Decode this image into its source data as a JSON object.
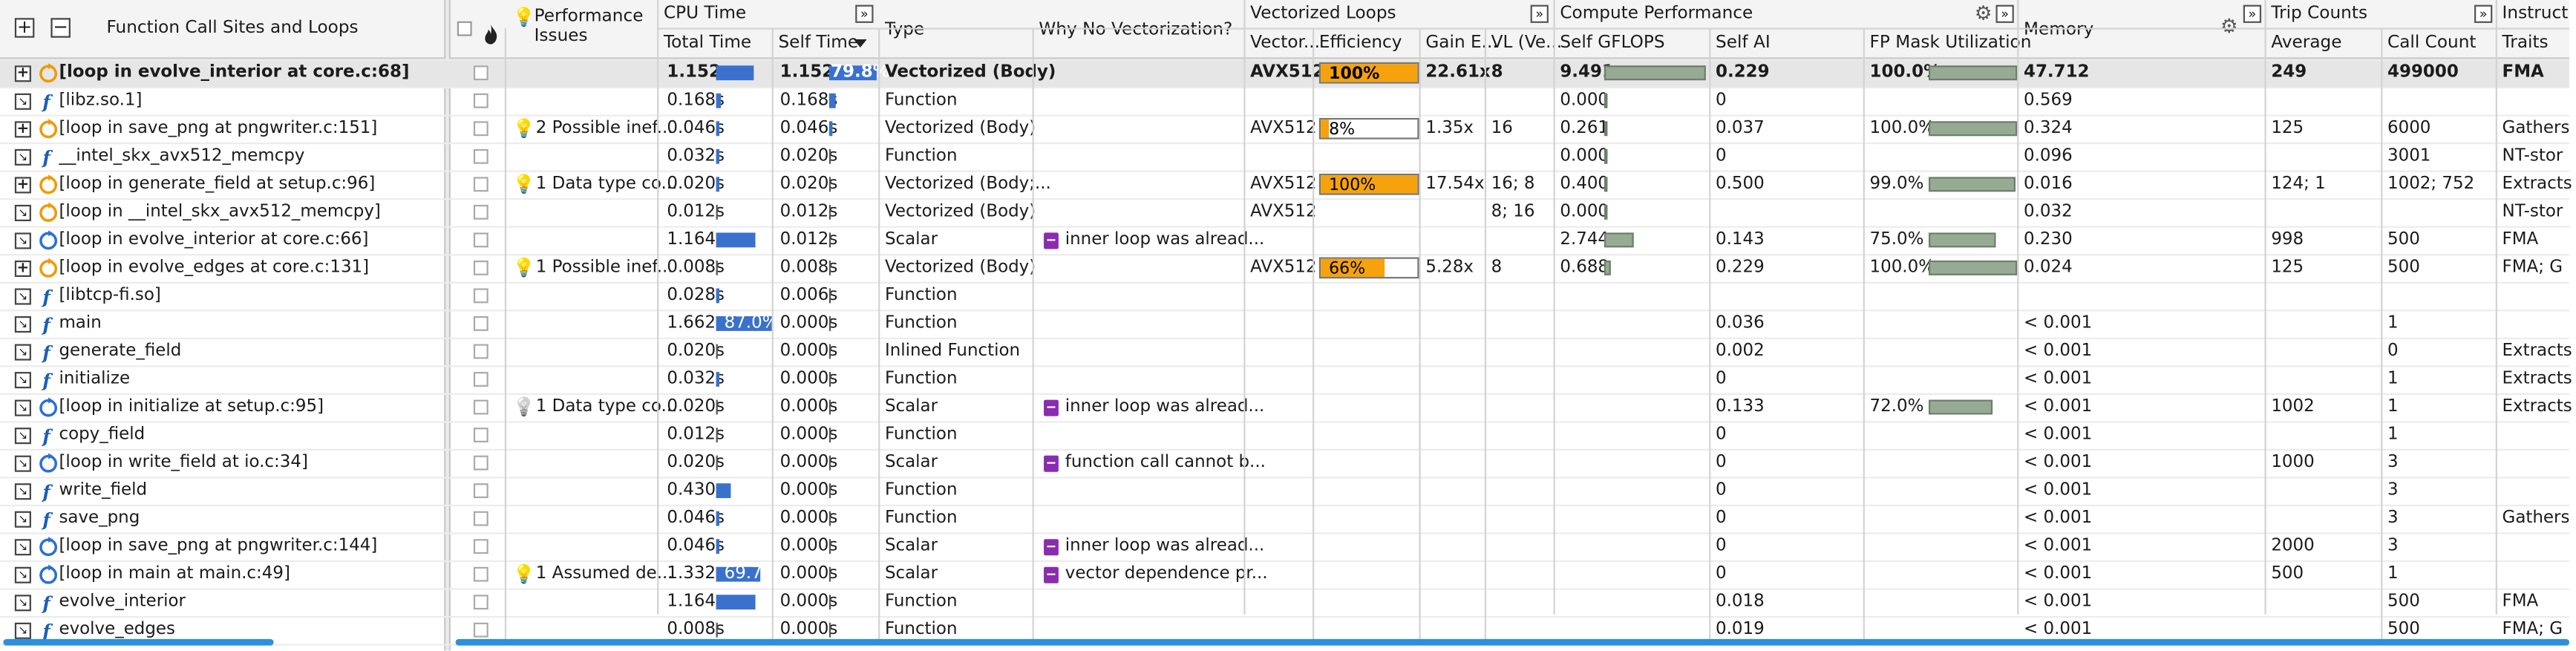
{
  "header": {
    "function_call_sites": "Function Call Sites and Loops",
    "performance_issues_1": "Performance",
    "performance_issues_2": "Issues",
    "cpu_time": "CPU Time",
    "total_time": "Total Time",
    "self_time": "Self Time",
    "type": "Type",
    "why_no_vec": "Why No Vectorization?",
    "vectorized_loops": "Vectorized Loops",
    "vector_isa": "Vector...",
    "efficiency": "Efficiency",
    "gain": "Gain E...",
    "vl": "VL (Ve...",
    "compute_perf": "Compute Performance",
    "self_gflops": "Self GFLOPS",
    "self_ai": "Self AI",
    "fp_mask": "FP Mask Utilization",
    "memory": "Memory",
    "trip_counts": "Trip Counts",
    "average": "Average",
    "call_count": "Call Count",
    "instruct": "Instruct",
    "traits": "Traits"
  },
  "rows": [
    {
      "expander": "+",
      "icon": "loop",
      "name": "[loop in evolve_interior at core.c:68]",
      "issue": "",
      "total": "1.152s",
      "total_frac": 0.69,
      "total_pct": "",
      "self": "1.152s",
      "self_frac": 1.0,
      "self_pct": "79.8%",
      "type": "Vectorized (Body)",
      "why": "",
      "isa": "AVX512",
      "eff": "100%",
      "eff_frac": 1.0,
      "gain": "22.61x",
      "vl": "8",
      "gflops": "9.491",
      "gflops_frac": 1.0,
      "ai": "0.229",
      "fp": "100.0%",
      "fp_frac": 1.0,
      "mem": "47.712",
      "avg": "249",
      "calls": "499000",
      "traits": "FMA",
      "selected": true
    },
    {
      "expander": "x",
      "icon": "func",
      "name": "[libz.so.1]",
      "issue": "",
      "total": "0.168s",
      "total_frac": 0.1,
      "total_pct": "",
      "self": "0.168s",
      "self_frac": 0.15,
      "self_pct": "",
      "type": "Function",
      "why": "",
      "isa": "",
      "eff": "",
      "eff_frac": 0,
      "gain": "",
      "vl": "",
      "gflops": "0.000",
      "gflops_frac": 0.0,
      "ai": "0",
      "fp": "",
      "fp_frac": 0,
      "mem": "0.569",
      "avg": "",
      "calls": "",
      "traits": ""
    },
    {
      "expander": "+",
      "icon": "loop",
      "name": "[loop in save_png at pngwriter.c:151]",
      "issue": "2 Possible inef...",
      "total": "0.046s",
      "total_frac": 0.03,
      "total_pct": "",
      "self": "0.046s",
      "self_frac": 0.04,
      "self_pct": "",
      "type": "Vectorized (Body)",
      "why": "",
      "isa": "AVX512",
      "eff": "8%",
      "eff_frac": 0.08,
      "gain": "1.35x",
      "vl": "16",
      "gflops": "0.261",
      "gflops_frac": 0.03,
      "ai": "0.037",
      "fp": "100.0%",
      "fp_frac": 1.0,
      "mem": "0.324",
      "avg": "125",
      "calls": "6000",
      "traits": "Gathers"
    },
    {
      "expander": "x",
      "icon": "func",
      "name": "__intel_skx_avx512_memcpy",
      "issue": "",
      "total": "0.032s",
      "total_frac": 0.02,
      "total_pct": "",
      "self": "0.020s",
      "self_frac": 0.0,
      "self_pct": "",
      "type": "Function",
      "why": "",
      "isa": "",
      "eff": "",
      "eff_frac": 0,
      "gain": "",
      "vl": "",
      "gflops": "0.000",
      "gflops_frac": 0.0,
      "ai": "0",
      "fp": "",
      "fp_frac": 0,
      "mem": "0.096",
      "avg": "",
      "calls": "3001",
      "traits": "NT-stor"
    },
    {
      "expander": "+",
      "icon": "loop",
      "name": "[loop in generate_field at setup.c:96]",
      "issue": "1 Data type co...",
      "total": "0.020s",
      "total_frac": 0.01,
      "total_pct": "",
      "self": "0.020s",
      "self_frac": 0.0,
      "self_pct": "",
      "type": "Vectorized (Body;...",
      "why": "",
      "isa": "AVX512",
      "eff": "100%",
      "eff_frac": 1.0,
      "gain": "17.54x",
      "vl": "16; 8",
      "gflops": "0.400",
      "gflops_frac": 0.04,
      "ai": "0.500",
      "fp": "99.0%",
      "fp_frac": 0.99,
      "mem": "0.016",
      "avg": "124; 1",
      "calls": "1002; 752",
      "traits": "Extracts"
    },
    {
      "expander": "x",
      "icon": "loop",
      "name": "[loop in __intel_skx_avx512_memcpy]",
      "issue": "",
      "total": "0.012s",
      "total_frac": 0.0,
      "total_pct": "",
      "self": "0.012s",
      "self_frac": 0.0,
      "self_pct": "",
      "type": "Vectorized (Body)",
      "why": "",
      "isa": "AVX512",
      "eff": "",
      "eff_frac": 0,
      "gain": "",
      "vl": "8; 16",
      "gflops": "0.000",
      "gflops_frac": 0.0,
      "ai": "",
      "fp": "",
      "fp_frac": 0,
      "mem": "0.032",
      "avg": "",
      "calls": "",
      "traits": "NT-stor"
    },
    {
      "expander": "x",
      "icon": "loopblue",
      "name": "[loop in evolve_interior at core.c:66]",
      "issue": "",
      "total": "1.164s",
      "total_frac": 0.7,
      "total_pct": "",
      "self": "0.012s",
      "self_frac": 0.0,
      "self_pct": "",
      "type": "Scalar",
      "why": "inner loop was alread...",
      "isa": "",
      "eff": "",
      "eff_frac": 0,
      "gain": "",
      "vl": "",
      "gflops": "2.744",
      "gflops_frac": 0.29,
      "ai": "0.143",
      "fp": "75.0%",
      "fp_frac": 0.75,
      "mem": "0.230",
      "avg": "998",
      "calls": "500",
      "traits": "FMA"
    },
    {
      "expander": "+",
      "icon": "loop",
      "name": "[loop in evolve_edges at core.c:131]",
      "issue": "1 Possible inef...",
      "total": "0.008s",
      "total_frac": 0.0,
      "total_pct": "",
      "self": "0.008s",
      "self_frac": 0.0,
      "self_pct": "",
      "type": "Vectorized (Body)",
      "why": "",
      "isa": "AVX512",
      "eff": "66%",
      "eff_frac": 0.66,
      "gain": "5.28x",
      "vl": "8",
      "gflops": "0.688",
      "gflops_frac": 0.07,
      "ai": "0.229",
      "fp": "100.0%",
      "fp_frac": 1.0,
      "mem": "0.024",
      "avg": "125",
      "calls": "500",
      "traits": "FMA; G"
    },
    {
      "expander": "x",
      "icon": "func",
      "name": "[libtcp-fi.so]",
      "issue": "",
      "total": "0.028s",
      "total_frac": 0.02,
      "total_pct": "",
      "self": "0.006s",
      "self_frac": 0.0,
      "self_pct": "",
      "type": "Function",
      "why": "",
      "isa": "",
      "eff": "",
      "eff_frac": 0,
      "gain": "",
      "vl": "",
      "gflops": "",
      "gflops_frac": 0,
      "ai": "",
      "fp": "",
      "fp_frac": 0,
      "mem": "",
      "avg": "",
      "calls": "",
      "traits": ""
    },
    {
      "expander": "x",
      "icon": "func",
      "name": "main",
      "issue": "",
      "total": "1.662s",
      "total_frac": 1.0,
      "total_pct": "87.0%",
      "self": "0.000s",
      "self_frac": 0.0,
      "self_pct": "",
      "type": "Function",
      "why": "",
      "isa": "",
      "eff": "",
      "eff_frac": 0,
      "gain": "",
      "vl": "",
      "gflops": "",
      "gflops_frac": 0,
      "ai": "0.036",
      "fp": "",
      "fp_frac": 0,
      "mem": "< 0.001",
      "avg": "",
      "calls": "1",
      "traits": ""
    },
    {
      "expander": "x",
      "icon": "func",
      "name": "generate_field",
      "issue": "",
      "total": "0.020s",
      "total_frac": 0.0,
      "total_pct": "",
      "self": "0.000s",
      "self_frac": 0.0,
      "self_pct": "",
      "type": "Inlined Function",
      "why": "",
      "isa": "",
      "eff": "",
      "eff_frac": 0,
      "gain": "",
      "vl": "",
      "gflops": "",
      "gflops_frac": 0,
      "ai": "0.002",
      "fp": "",
      "fp_frac": 0,
      "mem": "< 0.001",
      "avg": "",
      "calls": "0",
      "traits": "Extracts"
    },
    {
      "expander": "x",
      "icon": "func",
      "name": "initialize",
      "issue": "",
      "total": "0.032s",
      "total_frac": 0.02,
      "total_pct": "",
      "self": "0.000s",
      "self_frac": 0.0,
      "self_pct": "",
      "type": "Function",
      "why": "",
      "isa": "",
      "eff": "",
      "eff_frac": 0,
      "gain": "",
      "vl": "",
      "gflops": "",
      "gflops_frac": 0,
      "ai": "0",
      "fp": "",
      "fp_frac": 0,
      "mem": "< 0.001",
      "avg": "",
      "calls": "1",
      "traits": "Extracts"
    },
    {
      "expander": "x",
      "icon": "loopblue",
      "name": "[loop in initialize at setup.c:95]",
      "issue": "1 Data type co...",
      "total": "0.020s",
      "total_frac": 0.0,
      "total_pct": "",
      "self": "0.000s",
      "self_frac": 0.0,
      "self_pct": "",
      "type": "Scalar",
      "why": "inner loop was alread...",
      "isa": "",
      "eff": "",
      "eff_frac": 0,
      "gain": "",
      "vl": "",
      "gflops": "",
      "gflops_frac": 0,
      "ai": "0.133",
      "fp": "72.0%",
      "fp_frac": 0.72,
      "mem": "< 0.001",
      "avg": "1002",
      "calls": "1",
      "traits": "Extracts",
      "bulb_grey": true
    },
    {
      "expander": "x",
      "icon": "func",
      "name": "copy_field",
      "issue": "",
      "total": "0.012s",
      "total_frac": 0.0,
      "total_pct": "",
      "self": "0.000s",
      "self_frac": 0.0,
      "self_pct": "",
      "type": "Function",
      "why": "",
      "isa": "",
      "eff": "",
      "eff_frac": 0,
      "gain": "",
      "vl": "",
      "gflops": "",
      "gflops_frac": 0,
      "ai": "0",
      "fp": "",
      "fp_frac": 0,
      "mem": "< 0.001",
      "avg": "",
      "calls": "1",
      "traits": ""
    },
    {
      "expander": "x",
      "icon": "loopblue",
      "name": "[loop in write_field at io.c:34]",
      "issue": "",
      "total": "0.020s",
      "total_frac": 0.0,
      "total_pct": "",
      "self": "0.000s",
      "self_frac": 0.0,
      "self_pct": "",
      "type": "Scalar",
      "why": "function call cannot b...",
      "isa": "",
      "eff": "",
      "eff_frac": 0,
      "gain": "",
      "vl": "",
      "gflops": "",
      "gflops_frac": 0,
      "ai": "0",
      "fp": "",
      "fp_frac": 0,
      "mem": "< 0.001",
      "avg": "1000",
      "calls": "3",
      "traits": ""
    },
    {
      "expander": "x",
      "icon": "func",
      "name": "write_field",
      "issue": "",
      "total": "0.430s",
      "total_frac": 0.26,
      "total_pct": "",
      "self": "0.000s",
      "self_frac": 0.0,
      "self_pct": "",
      "type": "Function",
      "why": "",
      "isa": "",
      "eff": "",
      "eff_frac": 0,
      "gain": "",
      "vl": "",
      "gflops": "",
      "gflops_frac": 0,
      "ai": "0",
      "fp": "",
      "fp_frac": 0,
      "mem": "< 0.001",
      "avg": "",
      "calls": "3",
      "traits": ""
    },
    {
      "expander": "x",
      "icon": "func",
      "name": "save_png",
      "issue": "",
      "total": "0.046s",
      "total_frac": 0.03,
      "total_pct": "",
      "self": "0.000s",
      "self_frac": 0.0,
      "self_pct": "",
      "type": "Function",
      "why": "",
      "isa": "",
      "eff": "",
      "eff_frac": 0,
      "gain": "",
      "vl": "",
      "gflops": "",
      "gflops_frac": 0,
      "ai": "0",
      "fp": "",
      "fp_frac": 0,
      "mem": "< 0.001",
      "avg": "",
      "calls": "3",
      "traits": "Gathers"
    },
    {
      "expander": "x",
      "icon": "loopblue",
      "name": "[loop in save_png at pngwriter.c:144]",
      "issue": "",
      "total": "0.046s",
      "total_frac": 0.03,
      "total_pct": "",
      "self": "0.000s",
      "self_frac": 0.0,
      "self_pct": "",
      "type": "Scalar",
      "why": "inner loop was alread...",
      "isa": "",
      "eff": "",
      "eff_frac": 0,
      "gain": "",
      "vl": "",
      "gflops": "",
      "gflops_frac": 0,
      "ai": "0",
      "fp": "",
      "fp_frac": 0,
      "mem": "< 0.001",
      "avg": "2000",
      "calls": "3",
      "traits": ""
    },
    {
      "expander": "x",
      "icon": "loopblue",
      "name": "[loop in main at main.c:49]",
      "issue": "1 Assumed de...",
      "total": "1.332s",
      "total_frac": 0.8,
      "total_pct": "69.7%",
      "self": "0.000s",
      "self_frac": 0.0,
      "self_pct": "",
      "type": "Scalar",
      "why": "vector dependence pr...",
      "isa": "",
      "eff": "",
      "eff_frac": 0,
      "gain": "",
      "vl": "",
      "gflops": "",
      "gflops_frac": 0,
      "ai": "0",
      "fp": "",
      "fp_frac": 0,
      "mem": "< 0.001",
      "avg": "500",
      "calls": "1",
      "traits": ""
    },
    {
      "expander": "x",
      "icon": "func",
      "name": "evolve_interior",
      "issue": "",
      "total": "1.164s",
      "total_frac": 0.7,
      "total_pct": "",
      "self": "0.000s",
      "self_frac": 0.0,
      "self_pct": "",
      "type": "Function",
      "why": "",
      "isa": "",
      "eff": "",
      "eff_frac": 0,
      "gain": "",
      "vl": "",
      "gflops": "",
      "gflops_frac": 0,
      "ai": "0.018",
      "fp": "",
      "fp_frac": 0,
      "mem": "< 0.001",
      "avg": "",
      "calls": "500",
      "traits": "FMA"
    },
    {
      "expander": "x",
      "icon": "func",
      "name": "evolve_edges",
      "issue": "",
      "total": "0.008s",
      "total_frac": 0.0,
      "total_pct": "",
      "self": "0.000s",
      "self_frac": 0.0,
      "self_pct": "",
      "type": "Function",
      "why": "",
      "isa": "",
      "eff": "",
      "eff_frac": 0,
      "gain": "",
      "vl": "",
      "gflops": "",
      "gflops_frac": 0,
      "ai": "0.019",
      "fp": "",
      "fp_frac": 0,
      "mem": "< 0.001",
      "avg": "",
      "calls": "500",
      "traits": "FMA; G"
    }
  ],
  "colors": {
    "bar": "#3a71cc",
    "efficiency": "#f5a20c",
    "gflops": "#97ab94",
    "scrollbar": "#2f8fdc",
    "why_icon": "#8a2cb0"
  }
}
